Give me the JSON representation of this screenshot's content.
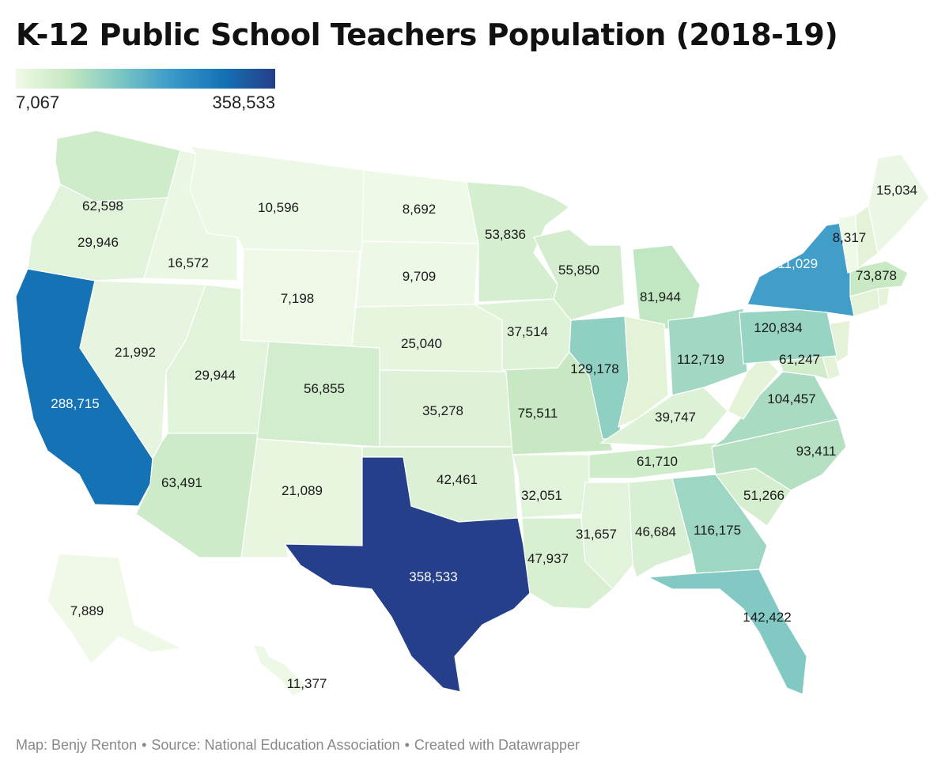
{
  "title": "K-12 Public School Teachers Population (2018-19)",
  "legend": {
    "min_label": "7,067",
    "max_label": "358,533",
    "min": 7067,
    "max": 358533,
    "colors": [
      "#f0f9e8",
      "#c6e8c2",
      "#7cc7c4",
      "#3a9ac9",
      "#1472b5",
      "#253f8a"
    ]
  },
  "footer": {
    "map_credit": "Map: Benjy Renton",
    "source": "Source: National Education Association",
    "tool": "Created with Datawrapper"
  },
  "chart_data": {
    "type": "choropleth",
    "title": "K-12 Public School Teachers Population (2018-19)",
    "states": [
      {
        "code": "WA",
        "label": "62,598",
        "value": 62598
      },
      {
        "code": "OR",
        "label": "29,946",
        "value": 29946
      },
      {
        "code": "CA",
        "label": "288,715",
        "value": 288715
      },
      {
        "code": "ID",
        "label": "16,572",
        "value": 16572
      },
      {
        "code": "NV",
        "label": "21,992",
        "value": 21992
      },
      {
        "code": "MT",
        "label": "10,596",
        "value": 10596
      },
      {
        "code": "WY",
        "label": "7,198",
        "value": 7198
      },
      {
        "code": "UT",
        "label": "29,944",
        "value": 29944
      },
      {
        "code": "AZ",
        "label": "63,491",
        "value": 63491
      },
      {
        "code": "CO",
        "label": "56,855",
        "value": 56855
      },
      {
        "code": "NM",
        "label": "21,089",
        "value": 21089
      },
      {
        "code": "ND",
        "label": "8,692",
        "value": 8692
      },
      {
        "code": "SD",
        "label": "9,709",
        "value": 9709
      },
      {
        "code": "NE",
        "label": "25,040",
        "value": 25040
      },
      {
        "code": "KS",
        "label": "35,278",
        "value": 35278
      },
      {
        "code": "OK",
        "label": "42,461",
        "value": 42461
      },
      {
        "code": "TX",
        "label": "358,533",
        "value": 358533
      },
      {
        "code": "MN",
        "label": "53,836",
        "value": 53836
      },
      {
        "code": "IA",
        "label": "37,514",
        "value": 37514
      },
      {
        "code": "MO",
        "label": "75,511",
        "value": 75511
      },
      {
        "code": "AR",
        "label": "32,051",
        "value": 32051
      },
      {
        "code": "LA",
        "label": "47,937",
        "value": 47937
      },
      {
        "code": "WI",
        "label": "55,850",
        "value": 55850
      },
      {
        "code": "IL",
        "label": "129,178",
        "value": 129178
      },
      {
        "code": "MI",
        "label": "81,944",
        "value": 81944
      },
      {
        "code": "IN",
        "label": "",
        "value": null
      },
      {
        "code": "OH",
        "label": "112,719",
        "value": 112719
      },
      {
        "code": "KY",
        "label": "39,747",
        "value": 39747
      },
      {
        "code": "TN",
        "label": "61,710",
        "value": 61710
      },
      {
        "code": "MS",
        "label": "31,657",
        "value": 31657
      },
      {
        "code": "AL",
        "label": "46,684",
        "value": 46684
      },
      {
        "code": "GA",
        "label": "116,175",
        "value": 116175
      },
      {
        "code": "FL",
        "label": "142,422",
        "value": 142422
      },
      {
        "code": "SC",
        "label": "51,266",
        "value": 51266
      },
      {
        "code": "NC",
        "label": "93,411",
        "value": 93411
      },
      {
        "code": "VA",
        "label": "104,457",
        "value": 104457
      },
      {
        "code": "WV",
        "label": "",
        "value": null
      },
      {
        "code": "MD",
        "label": "61,247",
        "value": 61247
      },
      {
        "code": "DE",
        "label": "",
        "value": null
      },
      {
        "code": "NJ",
        "label": "",
        "value": null
      },
      {
        "code": "PA",
        "label": "120,834",
        "value": 120834
      },
      {
        "code": "NY",
        "label": "211,029",
        "value": 211029
      },
      {
        "code": "CT",
        "label": "",
        "value": null
      },
      {
        "code": "RI",
        "label": "",
        "value": null
      },
      {
        "code": "MA",
        "label": "73,878",
        "value": 73878
      },
      {
        "code": "VT",
        "label": "8,317",
        "value": 8317
      },
      {
        "code": "NH",
        "label": "",
        "value": null
      },
      {
        "code": "ME",
        "label": "15,034",
        "value": 15034
      },
      {
        "code": "AK",
        "label": "7,889",
        "value": 7889
      },
      {
        "code": "HI",
        "label": "11,377",
        "value": 11377
      }
    ]
  }
}
